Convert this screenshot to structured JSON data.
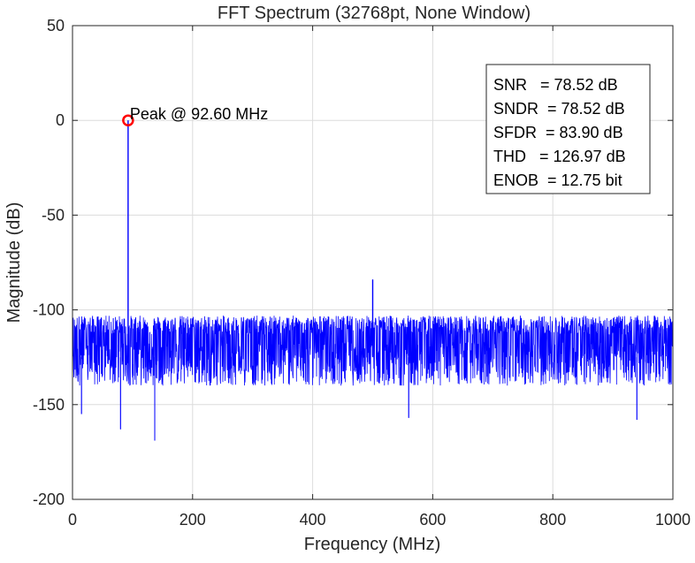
{
  "chart_data": {
    "type": "line",
    "title": "FFT Spectrum (32768pt, None Window)",
    "xlabel": "Frequency (MHz)",
    "ylabel": "Magnitude (dB)",
    "xlim": [
      0,
      1000
    ],
    "ylim": [
      -200,
      50
    ],
    "xticks": [
      0,
      200,
      400,
      600,
      800,
      1000
    ],
    "xtick_labels": [
      "0",
      "200",
      "400",
      "600",
      "800",
      "1000"
    ],
    "yticks": [
      50,
      0,
      -50,
      -100,
      -150,
      -200
    ],
    "ytick_labels": [
      "50",
      "0",
      "-50",
      "-100",
      "-150",
      "-200"
    ],
    "grid": true,
    "series": [
      {
        "color": "#0000ff",
        "noise_floor": {
          "typical_db": -125,
          "range_db": [
            -140,
            -113
          ]
        },
        "spikes": [
          {
            "x": 92.6,
            "y": 0
          },
          {
            "x": 500,
            "y": -84
          }
        ],
        "dips": [
          {
            "x": 0,
            "y": -200
          },
          {
            "x": 15,
            "y": -155
          },
          {
            "x": 80,
            "y": -163
          },
          {
            "x": 137,
            "y": -169
          },
          {
            "x": 560,
            "y": -157
          },
          {
            "x": 940,
            "y": -158
          }
        ]
      }
    ],
    "peak_marker": {
      "x": 92.6,
      "y": 0,
      "label": "Peak @ 92.60 MHz",
      "color": "#ff0000"
    },
    "metrics_box": {
      "position": "top-right",
      "lines": [
        "SNR   = 78.52 dB",
        "SNDR  = 78.52 dB",
        "SFDR  = 83.90 dB",
        "THD   = 126.97 dB",
        "ENOB  = 12.75 bit"
      ]
    }
  }
}
